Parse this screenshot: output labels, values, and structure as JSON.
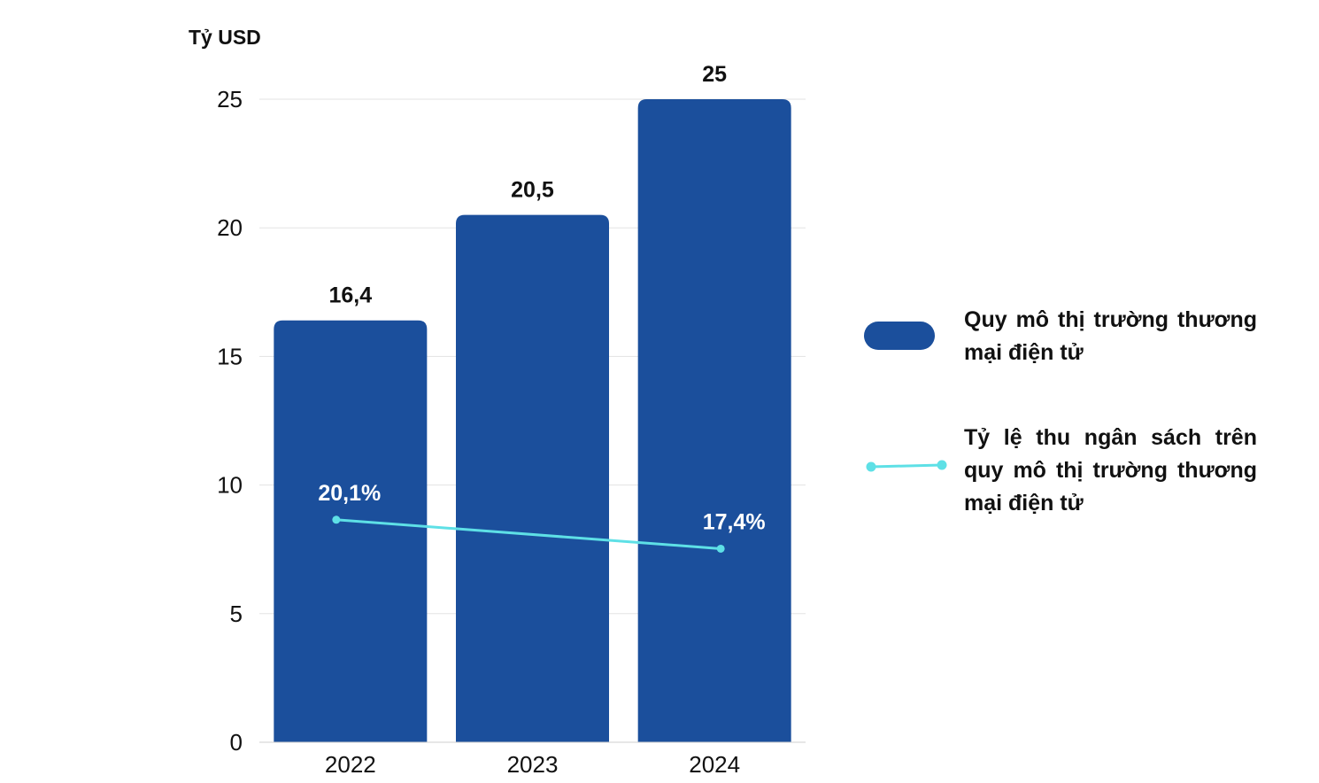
{
  "chart_data": {
    "type": "bar",
    "ylabel": "Tỷ USD",
    "ylim": [
      0,
      25
    ],
    "yticks": [
      0,
      5,
      10,
      15,
      20,
      25
    ],
    "categories": [
      "2022",
      "2023",
      "2024"
    ],
    "series": [
      {
        "name": "Quy mô thị trường thương mại điện tử",
        "kind": "bar",
        "values": [
          16.4,
          20.5,
          25
        ],
        "labels": [
          "16,4",
          "20,5",
          "25"
        ],
        "color": "#1b4f9c"
      },
      {
        "name": "Tỷ lệ thu ngân sách trên quy mô thị trường thương mại điện tử",
        "kind": "line",
        "points": [
          {
            "category": "2022",
            "value": 20.1,
            "label": "20,1%"
          },
          {
            "category": "2024",
            "value": 17.4,
            "label": "17,4%"
          }
        ],
        "color": "#5ee0e6"
      }
    ],
    "legend_position": "right",
    "grid": true
  }
}
